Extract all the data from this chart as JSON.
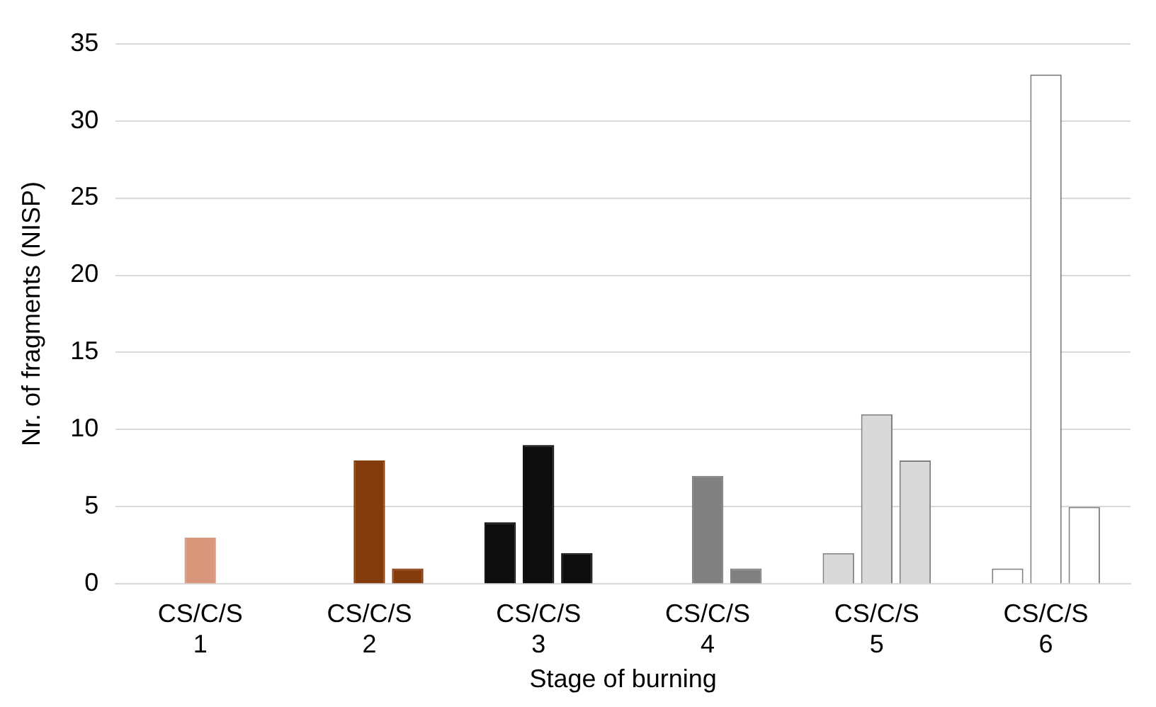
{
  "chart_data": {
    "type": "bar",
    "xlabel": "Stage of burning",
    "ylabel": "Nr. of fragments (NISP)",
    "categories": [
      "CS/C/S\n1",
      "CS/C/S\n2",
      "CS/C/S\n3",
      "CS/C/S\n4",
      "CS/C/S\n5",
      "CS/C/S\n6"
    ],
    "series": [
      {
        "colors": [
          "#d9967a",
          "#843c0c",
          "#0d0d0d",
          "#808080",
          "#d9d9d9",
          "#ffffff"
        ],
        "values": [
          null,
          null,
          4,
          null,
          2,
          1
        ]
      },
      {
        "colors": [
          "#d9967a",
          "#843c0c",
          "#0d0d0d",
          "#808080",
          "#d9d9d9",
          "#ffffff"
        ],
        "values": [
          3,
          8,
          9,
          7,
          11,
          33
        ]
      },
      {
        "colors": [
          "#d9967a",
          "#843c0c",
          "#0d0d0d",
          "#808080",
          "#d9d9d9",
          "#ffffff"
        ],
        "values": [
          null,
          1,
          2,
          1,
          8,
          5
        ]
      }
    ],
    "ylim": [
      0,
      35
    ],
    "yticks": [
      0,
      5,
      10,
      15,
      20,
      25,
      30,
      35
    ],
    "grid": "y",
    "legend": false
  }
}
